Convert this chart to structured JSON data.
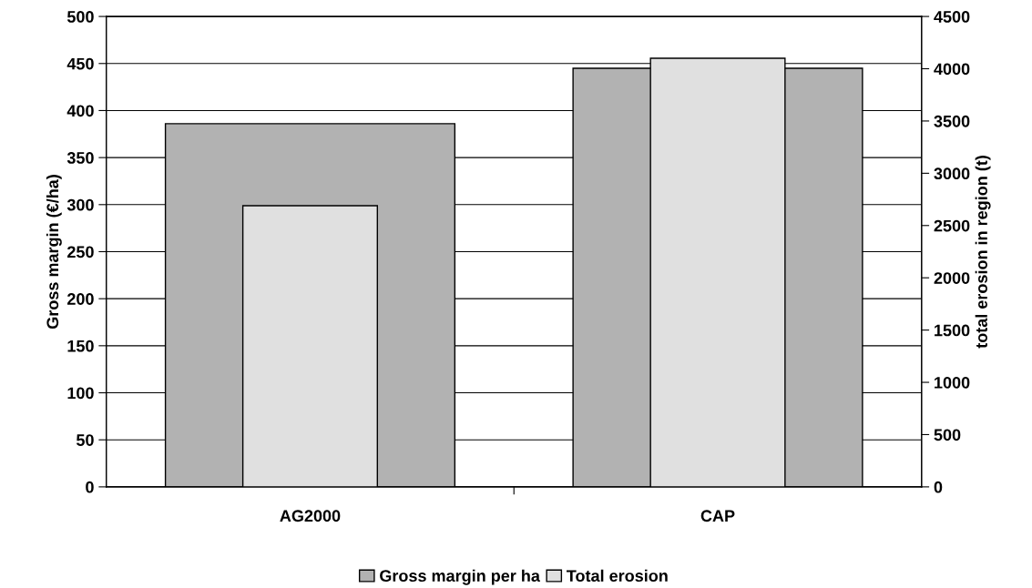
{
  "chart_data": {
    "type": "bar",
    "categories": [
      "AG2000",
      "CAP"
    ],
    "series": [
      {
        "name": "Gross margin per ha",
        "color": "#b2b2b2",
        "values": [
          386,
          445
        ]
      },
      {
        "name": "Total erosion",
        "color": "#e0e0e0",
        "values": [
          2690,
          4100
        ],
        "axis": "y2"
      }
    ],
    "ylabel": "Gross margin (€/ha)",
    "y2label": "total erosion in region (t)",
    "ylim": [
      0,
      500
    ],
    "yticks": [
      0,
      50,
      100,
      150,
      200,
      250,
      300,
      350,
      400,
      450,
      500
    ],
    "y2lim": [
      0,
      4500
    ],
    "y2ticks": [
      0,
      500,
      1000,
      1500,
      2000,
      2500,
      3000,
      3500,
      4000,
      4500
    ],
    "grid": "y",
    "legend": "bottom"
  }
}
